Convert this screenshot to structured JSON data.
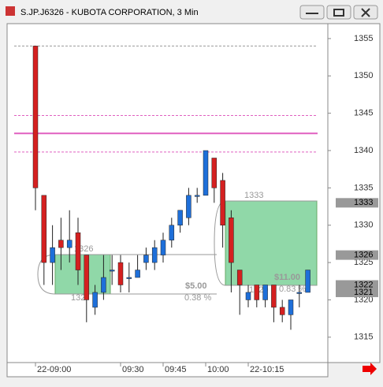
{
  "window": {
    "title": "S.JP.J6326 - KUBOTA CORPORATION, 3 Min"
  },
  "chart_data": {
    "type": "candlestick",
    "categories": [
      "22-09:00",
      null,
      null,
      null,
      null,
      null,
      null,
      null,
      null,
      null,
      "09:30",
      null,
      null,
      null,
      null,
      "09:45",
      null,
      null,
      null,
      null,
      "10:00",
      null,
      null,
      null,
      null,
      "22-10:15",
      null,
      null,
      null,
      null,
      null,
      null,
      null
    ],
    "series": [
      {
        "name": "KUBOTA",
        "up_color": "#1e6fd9",
        "down_color": "#d42020",
        "open": [
          1354,
          1334,
          1325,
          1328,
          1327,
          1329,
          1326,
          1319,
          1321,
          1324,
          1325,
          1323,
          1323,
          1325,
          1325,
          1326,
          1328,
          1330,
          1331,
          1334,
          1334,
          1339,
          1336,
          1331,
          1324,
          1320,
          1322,
          1320,
          1322,
          1319,
          1318,
          1321,
          1321
        ],
        "high": [
          1354,
          1334,
          1330,
          1331,
          1332,
          1331,
          1326,
          1322,
          1326,
          1326,
          1326,
          1325,
          1326,
          1327,
          1328,
          1329,
          1331,
          1332,
          1335,
          1335,
          1340,
          1339,
          1337,
          1332,
          1324,
          1322,
          1322,
          1322,
          1322,
          1320,
          1320,
          1322,
          1324
        ],
        "low": [
          1332,
          1322,
          1322,
          1324,
          1325,
          1322,
          1317,
          1318,
          1320,
          1322,
          1321,
          1321,
          1323,
          1324,
          1324,
          1325,
          1327,
          1329,
          1330,
          1333,
          1334,
          1333,
          1327,
          1321,
          1318,
          1319,
          1319,
          1319,
          1317,
          1317,
          1316,
          1319,
          1321
        ],
        "close": [
          1335,
          1325,
          1327,
          1327,
          1328,
          1324,
          1320,
          1321,
          1323,
          1324,
          1322,
          1323,
          1324,
          1326,
          1327,
          1328,
          1330,
          1332,
          1334,
          1334,
          1340,
          1335,
          1330,
          1325,
          1322,
          1321,
          1320,
          1322,
          1319,
          1318,
          1320,
          1321,
          1324
        ]
      }
    ],
    "ylim": [
      1311.6,
      1357
    ],
    "yticks": [
      1315,
      1320,
      1325,
      1330,
      1335,
      1340,
      1345,
      1350,
      1355
    ],
    "hlines": [
      {
        "value": 1354,
        "color": "#999999",
        "dashed": true
      },
      {
        "value": 1344.7,
        "color": "#e060c0",
        "dashed": true
      },
      {
        "value": 1342.3,
        "color": "#e060c0",
        "dashed": false
      },
      {
        "value": 1339.8,
        "color": "#e060c0",
        "dashed": true
      }
    ],
    "price_markers": [
      1333,
      1326,
      1322,
      1321
    ],
    "annotations": [
      "1333",
      "1326",
      "132",
      "1320",
      "$5.00",
      "0.38 %",
      "$11.00",
      "0.83 %"
    ]
  }
}
